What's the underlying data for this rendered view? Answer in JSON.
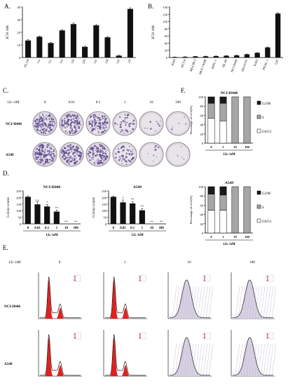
{
  "panel_letters": [
    "A.",
    "B.",
    "C.",
    "D.",
    "E.",
    "F."
  ],
  "chart_data": [
    {
      "id": "A",
      "type": "bar",
      "ylabel": "IC50 /nM",
      "ylim": [
        0,
        40
      ],
      "yticks": [
        0,
        10,
        20,
        30,
        40
      ],
      "categories": [
        "FL118",
        "11a",
        "11c",
        "11e",
        "12a",
        "12b",
        "12c",
        "12d",
        "12e",
        "12f"
      ],
      "values": [
        13.5,
        16.5,
        11.5,
        21.5,
        26.5,
        8.5,
        25.5,
        16,
        1.5,
        38.5
      ],
      "error": [
        0.8,
        0.5,
        0.6,
        0.7,
        0.8,
        0.5,
        0.7,
        0.6,
        0.3,
        0.9
      ]
    },
    {
      "id": "B",
      "type": "bar",
      "ylabel": "IC50 /nM",
      "ylim": [
        0,
        140
      ],
      "yticks": [
        0,
        20,
        40,
        60,
        80,
        100,
        120,
        140
      ],
      "categories": [
        "A549",
        "HCT-8",
        "MGC80-3",
        "MCF-7ADR",
        "ASPC-1",
        "HL-60",
        "NCI-H446",
        "SH-SY5Y",
        "K562",
        "PNAC-1",
        "U87"
      ],
      "values": [
        1.5,
        2,
        3,
        3.5,
        4,
        5,
        6,
        9,
        13,
        28,
        122
      ],
      "error": [
        0.3,
        0.3,
        0.4,
        0.4,
        0.4,
        0.5,
        0.5,
        0.6,
        0.8,
        1.2,
        2.5
      ]
    },
    {
      "id": "D1",
      "type": "bar",
      "title": "NCI-H446",
      "ylabel": "Colony counts",
      "xlabel": "12c /nM",
      "ylim": [
        0,
        250
      ],
      "yticks": [
        0,
        50,
        100,
        150,
        200,
        250
      ],
      "categories": [
        "0",
        "0.01",
        "0.1",
        "1",
        "10",
        "100"
      ],
      "values": [
        205,
        148,
        132,
        93,
        0,
        0
      ],
      "error": [
        5,
        18,
        15,
        12,
        0,
        0
      ],
      "annotations": [
        "",
        "n.s.",
        "*",
        "**",
        "**",
        "**"
      ]
    },
    {
      "id": "D2",
      "type": "bar",
      "title": "A549",
      "ylabel": "Colony counts",
      "xlabel": "12c /nM",
      "ylim": [
        0,
        250
      ],
      "yticks": [
        0,
        50,
        100,
        150,
        200,
        250
      ],
      "categories": [
        "0",
        "0.01",
        "0.1",
        "1",
        "10",
        "100"
      ],
      "values": [
        205,
        163,
        155,
        103,
        0,
        0
      ],
      "error": [
        5,
        18,
        15,
        13,
        0,
        0
      ],
      "annotations": [
        "",
        "*",
        "**",
        "**",
        "**",
        "**"
      ]
    },
    {
      "id": "F1",
      "type": "bar",
      "stacked": true,
      "title": "NCI-H446",
      "ylabel": "Percentage of cells(%)",
      "xlabel": "12c /nM",
      "ylim": [
        0,
        100
      ],
      "yticks": [
        0,
        20,
        40,
        60,
        80,
        100
      ],
      "categories": [
        "0",
        "1",
        "10",
        "100"
      ],
      "series": [
        {
          "name": "G0/G1",
          "color": "#ffffff",
          "values": [
            54,
            48,
            0,
            0
          ]
        },
        {
          "name": "S",
          "color": "#a6a6a6",
          "values": [
            32,
            38,
            100,
            100
          ]
        },
        {
          "name": "G2/M",
          "color": "#1a1a1a",
          "values": [
            14,
            14,
            0,
            0
          ]
        }
      ]
    },
    {
      "id": "F2",
      "type": "bar",
      "stacked": true,
      "title": "A549",
      "ylabel": "Percentage of cells(%)",
      "xlabel": "12c /nM",
      "ylim": [
        0,
        100
      ],
      "yticks": [
        0,
        20,
        40,
        60,
        80,
        100
      ],
      "categories": [
        "0",
        "1",
        "10",
        "100"
      ],
      "series": [
        {
          "name": "G0/G1",
          "color": "#ffffff",
          "values": [
            49,
            49,
            0,
            0
          ]
        },
        {
          "name": "S",
          "color": "#a6a6a6",
          "values": [
            35,
            33,
            100,
            100
          ]
        },
        {
          "name": "G2/M",
          "color": "#1a1a1a",
          "values": [
            16,
            18,
            0,
            0
          ]
        }
      ]
    }
  ],
  "plates": {
    "row_header": "12c /nM",
    "columns": [
      "0",
      "0.01",
      "0.1",
      "1",
      "10",
      "100"
    ],
    "rows": [
      "NCI-H446",
      "A549"
    ],
    "colony_density": [
      [
        0.9,
        0.75,
        0.65,
        0.25,
        0.05,
        0.03
      ],
      [
        0.9,
        0.8,
        0.7,
        0.3,
        0.05,
        0.03
      ]
    ]
  },
  "flow": {
    "row_header": "12c /nM",
    "columns": [
      "0",
      "1",
      "10",
      "100"
    ],
    "rows": [
      "NCI-H446",
      "A549"
    ]
  }
}
